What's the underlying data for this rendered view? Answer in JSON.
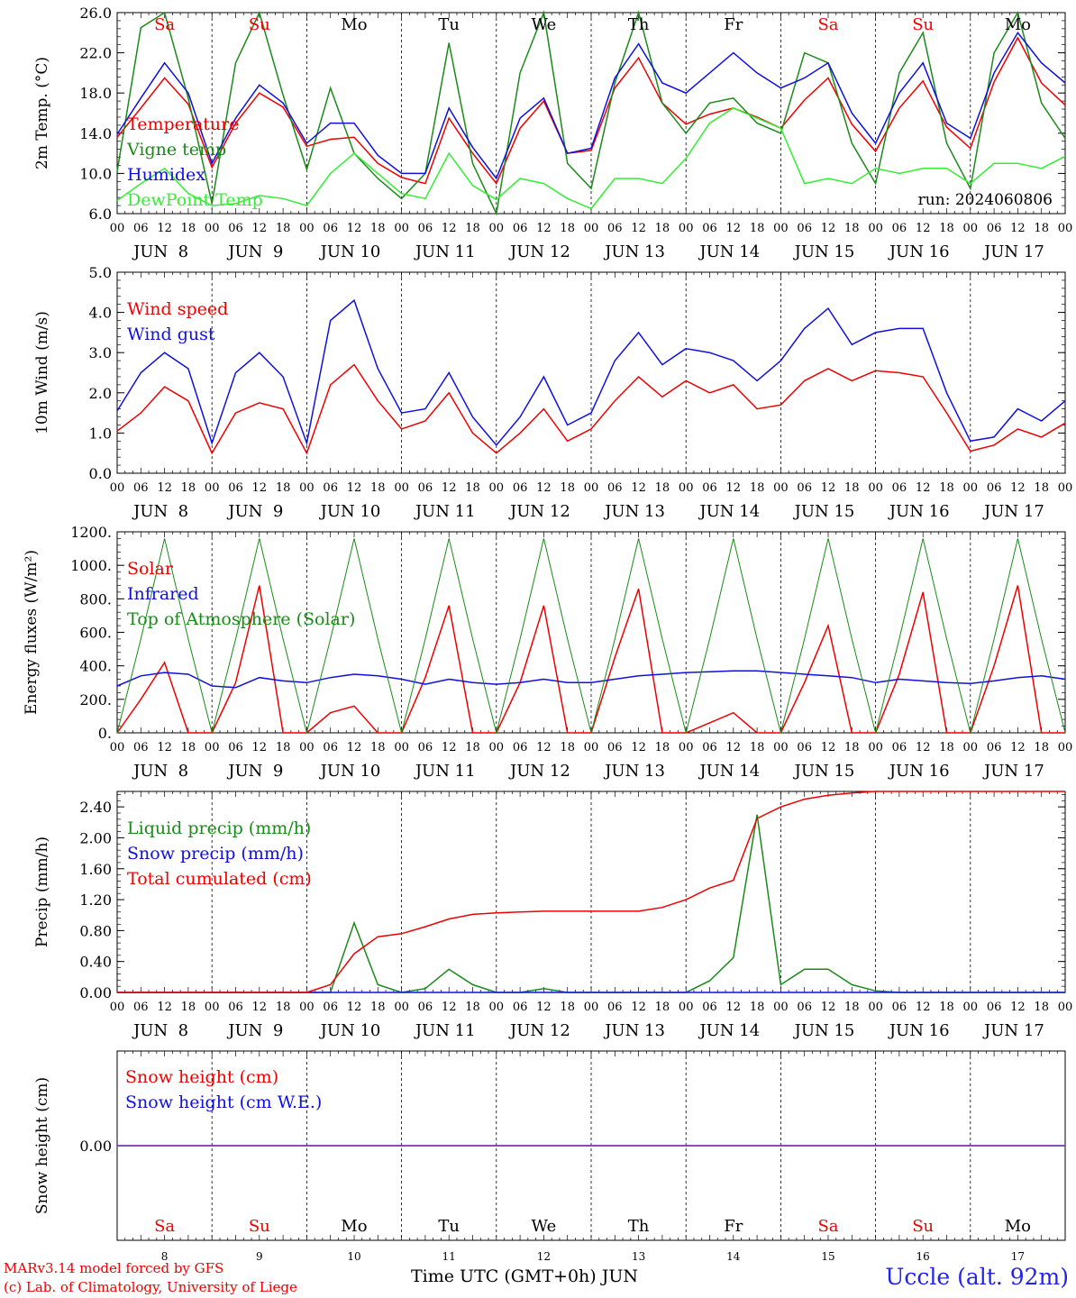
{
  "colors": {
    "red": "#ee0000",
    "green": "#1a8a1a",
    "blue": "#1010dd",
    "lightgreen": "#33ee33",
    "purple": "#7733aa",
    "black": "#000000"
  },
  "days": {
    "weekdays": [
      "Sa",
      "Su",
      "Mo",
      "Tu",
      "We",
      "Th",
      "Fr",
      "Sa",
      "Su",
      "Mo"
    ],
    "weekday_colors": [
      "red",
      "red",
      "black",
      "black",
      "black",
      "black",
      "black",
      "red",
      "red",
      "black"
    ],
    "dates": [
      "JUN  8",
      "JUN  9",
      "JUN 10",
      "JUN 11",
      "JUN 12",
      "JUN 13",
      "JUN 14",
      "JUN 15",
      "JUN 16",
      "JUN 17"
    ],
    "day_numbers": [
      "8",
      "9",
      "10",
      "11",
      "12",
      "13",
      "14",
      "15",
      "16",
      "17"
    ],
    "hour_ticks": [
      "00",
      "06",
      "12",
      "18"
    ],
    "end_tick": "00"
  },
  "chart_data": [
    {
      "type": "line",
      "ylabel": "2m Temp. (°C)",
      "ylim": [
        6.0,
        26.0
      ],
      "yticks": [
        "6.0",
        "10.0",
        "14.0",
        "18.0",
        "22.0",
        "26.0"
      ],
      "annotation": "run: 2024060806",
      "x_hours": [
        0,
        6,
        12,
        18,
        24,
        30,
        36,
        42,
        48,
        54,
        60,
        66,
        72,
        78,
        84,
        90,
        96,
        102,
        108,
        114,
        120,
        126,
        132,
        138,
        144,
        150,
        156,
        162,
        168,
        174,
        180,
        186,
        192,
        198,
        204,
        210,
        216,
        222,
        228,
        234,
        240
      ],
      "series": [
        {
          "name": "Temperature",
          "color": "red",
          "values": [
            13.6,
            16.5,
            19.5,
            16.9,
            10.6,
            15.0,
            18.0,
            16.6,
            12.7,
            13.4,
            13.6,
            11.0,
            9.6,
            9.0,
            15.5,
            12.0,
            9.0,
            14.5,
            17.2,
            12.0,
            12.3,
            18.5,
            21.5,
            17.0,
            14.9,
            15.9,
            16.5,
            15.6,
            14.5,
            17.3,
            19.5,
            14.9,
            12.2,
            16.5,
            19.2,
            14.6,
            12.5,
            19.1,
            23.5,
            19.0,
            16.8
          ]
        },
        {
          "name": "Vigne temp",
          "color": "green",
          "values": [
            10.2,
            24.5,
            26.0,
            17.5,
            7.0,
            21.0,
            26.0,
            17.8,
            10.4,
            18.5,
            12.0,
            9.5,
            7.5,
            10.0,
            23.0,
            11.0,
            6.0,
            20.0,
            26.0,
            11.0,
            8.5,
            19.0,
            26.0,
            17.0,
            14.0,
            17.0,
            17.5,
            15.0,
            14.0,
            22.0,
            21.0,
            13.0,
            9.0,
            20.0,
            24.0,
            13.0,
            8.5,
            22.0,
            26.0,
            17.0,
            13.5
          ]
        },
        {
          "name": "Humidex",
          "color": "blue",
          "values": [
            13.9,
            17.5,
            21.0,
            18.0,
            11.0,
            15.5,
            18.8,
            17.0,
            13.0,
            15.0,
            15.0,
            11.8,
            10.0,
            10.0,
            16.5,
            12.6,
            9.5,
            15.5,
            17.5,
            12.0,
            12.5,
            19.5,
            22.9,
            19.0,
            18.0,
            20.0,
            22.0,
            20.0,
            18.5,
            19.5,
            21.0,
            16.0,
            13.0,
            18.0,
            21.0,
            15.0,
            13.5,
            20.0,
            24.0,
            21.0,
            19.0
          ]
        },
        {
          "name": "DewPoint Temp",
          "color": "lightgreen",
          "values": [
            7.3,
            9.0,
            10.5,
            8.0,
            6.8,
            7.0,
            7.8,
            7.5,
            6.8,
            10.0,
            12.0,
            10.0,
            8.0,
            7.5,
            12.0,
            8.8,
            7.4,
            9.5,
            9.0,
            7.5,
            6.5,
            9.5,
            9.5,
            9.0,
            11.5,
            15.0,
            16.5,
            15.5,
            14.5,
            9.0,
            9.5,
            9.0,
            10.5,
            10.0,
            10.5,
            10.5,
            9.0,
            11.0,
            11.0,
            10.5,
            11.7
          ]
        }
      ]
    },
    {
      "type": "line",
      "ylabel": "10m Wind (m/s)",
      "ylim": [
        0.0,
        5.0
      ],
      "yticks": [
        "0.0",
        "1.0",
        "2.0",
        "3.0",
        "4.0",
        "5.0"
      ],
      "x_hours": [
        0,
        6,
        12,
        18,
        24,
        30,
        36,
        42,
        48,
        54,
        60,
        66,
        72,
        78,
        84,
        90,
        96,
        102,
        108,
        114,
        120,
        126,
        132,
        138,
        144,
        150,
        156,
        162,
        168,
        174,
        180,
        186,
        192,
        198,
        204,
        210,
        216,
        222,
        228,
        234,
        240
      ],
      "series": [
        {
          "name": "Wind speed",
          "color": "red",
          "values": [
            1.05,
            1.5,
            2.15,
            1.8,
            0.5,
            1.5,
            1.75,
            1.6,
            0.5,
            2.2,
            2.7,
            1.8,
            1.1,
            1.3,
            2.0,
            1.0,
            0.5,
            1.0,
            1.6,
            0.8,
            1.1,
            1.8,
            2.4,
            1.9,
            2.3,
            2.0,
            2.2,
            1.6,
            1.7,
            2.3,
            2.6,
            2.3,
            2.55,
            2.5,
            2.4,
            1.5,
            0.55,
            0.7,
            1.1,
            0.9,
            1.25
          ]
        },
        {
          "name": "Wind gust",
          "color": "blue",
          "values": [
            1.55,
            2.5,
            3.0,
            2.6,
            0.75,
            2.5,
            3.0,
            2.4,
            0.75,
            3.8,
            4.3,
            2.6,
            1.5,
            1.6,
            2.5,
            1.4,
            0.7,
            1.4,
            2.4,
            1.2,
            1.5,
            2.8,
            3.5,
            2.7,
            3.1,
            3.0,
            2.8,
            2.3,
            2.8,
            3.6,
            4.1,
            3.2,
            3.5,
            3.6,
            3.6,
            2.0,
            0.8,
            0.9,
            1.6,
            1.3,
            1.8
          ]
        }
      ]
    },
    {
      "type": "line",
      "ylabel": "Energy fluxes (W/m²)",
      "ylim": [
        0,
        1200
      ],
      "yticks": [
        "0.",
        "200.",
        "400.",
        "600.",
        "800.",
        "1000.",
        "1200."
      ],
      "x_hours": [
        0,
        6,
        12,
        18,
        24,
        30,
        36,
        42,
        48,
        54,
        60,
        66,
        72,
        78,
        84,
        90,
        96,
        102,
        108,
        114,
        120,
        126,
        132,
        138,
        144,
        150,
        156,
        162,
        168,
        174,
        180,
        186,
        192,
        198,
        204,
        210,
        216,
        222,
        228,
        234,
        240
      ],
      "series": [
        {
          "name": "Solar",
          "color": "red",
          "values": [
            0,
            200,
            420,
            0,
            0,
            300,
            880,
            0,
            0,
            120,
            160,
            0,
            0,
            330,
            760,
            0,
            0,
            300,
            760,
            0,
            0,
            450,
            860,
            0,
            0,
            60,
            120,
            0,
            0,
            300,
            640,
            0,
            0,
            350,
            840,
            0,
            0,
            400,
            880,
            0,
            0
          ]
        },
        {
          "name": "Infrared",
          "color": "blue",
          "values": [
            280,
            340,
            360,
            350,
            280,
            270,
            330,
            310,
            300,
            330,
            350,
            340,
            320,
            290,
            320,
            300,
            290,
            300,
            320,
            300,
            300,
            320,
            340,
            350,
            360,
            365,
            370,
            370,
            360,
            350,
            340,
            330,
            300,
            320,
            310,
            300,
            295,
            310,
            330,
            340,
            320
          ]
        },
        {
          "name": "Top of Atmosphere (Solar)",
          "color": "green",
          "values": [
            0,
            560,
            1160,
            560,
            0,
            560,
            1160,
            560,
            0,
            560,
            1160,
            560,
            0,
            560,
            1160,
            560,
            0,
            560,
            1160,
            560,
            0,
            560,
            1160,
            560,
            0,
            560,
            1160,
            560,
            0,
            560,
            1160,
            560,
            0,
            560,
            1160,
            560,
            0,
            560,
            1160,
            560,
            0
          ]
        }
      ]
    },
    {
      "type": "line",
      "ylabel": "Precip (mm/h)",
      "ylim": [
        0.0,
        2.6
      ],
      "yticks": [
        "0.00",
        "0.40",
        "0.80",
        "1.20",
        "1.60",
        "2.00",
        "2.40"
      ],
      "x_hours": [
        0,
        6,
        12,
        18,
        24,
        30,
        36,
        42,
        48,
        54,
        60,
        66,
        72,
        78,
        84,
        90,
        96,
        102,
        108,
        114,
        120,
        126,
        132,
        138,
        144,
        150,
        156,
        162,
        168,
        174,
        180,
        186,
        192,
        198,
        204,
        210,
        216,
        222,
        228,
        234,
        240
      ],
      "series": [
        {
          "name": "Liquid precip (mm/h)",
          "color": "green",
          "values": [
            0,
            0,
            0,
            0,
            0,
            0,
            0,
            0,
            0,
            0,
            0.9,
            0.1,
            0,
            0.05,
            0.3,
            0.1,
            0,
            0,
            0.05,
            0,
            0,
            0,
            0,
            0,
            0,
            0.15,
            0.45,
            2.3,
            0.1,
            0.3,
            0.3,
            0.1,
            0.02,
            0,
            0,
            0,
            0,
            0,
            0,
            0,
            0
          ]
        },
        {
          "name": "Snow precip (mm/h)",
          "color": "blue",
          "values": [
            0,
            0,
            0,
            0,
            0,
            0,
            0,
            0,
            0,
            0,
            0,
            0,
            0,
            0,
            0,
            0,
            0,
            0,
            0,
            0,
            0,
            0,
            0,
            0,
            0,
            0,
            0,
            0,
            0,
            0,
            0,
            0,
            0,
            0,
            0,
            0,
            0,
            0,
            0,
            0,
            0
          ]
        },
        {
          "name": "Total cumulated (cm)",
          "color": "red",
          "values": [
            0,
            0,
            0,
            0,
            0,
            0,
            0,
            0,
            0,
            0.1,
            0.5,
            0.72,
            0.76,
            0.85,
            0.95,
            1.01,
            1.03,
            1.04,
            1.05,
            1.05,
            1.05,
            1.05,
            1.05,
            1.1,
            1.2,
            1.35,
            1.45,
            2.25,
            2.4,
            2.5,
            2.55,
            2.58,
            2.6,
            2.6,
            2.6,
            2.6,
            2.6,
            2.6,
            2.6,
            2.6,
            2.6
          ]
        }
      ]
    },
    {
      "type": "line",
      "ylabel": "Snow height (cm)",
      "ylim": [
        -1,
        1
      ],
      "yticks": [
        "0.00"
      ],
      "x_hours": [
        0,
        240
      ],
      "series": [
        {
          "name": "Snow height (cm)",
          "color": "red",
          "values": [
            0,
            0
          ]
        },
        {
          "name": "Snow height (cm W.E.)",
          "color": "blue",
          "values": [
            0,
            0
          ]
        }
      ]
    }
  ],
  "footer": {
    "model_line": "MARv3.14 model forced by GFS",
    "credit_line": "(c) Lab. of Climatology, University of Liege",
    "xlabel": "Time UTC (GMT+0h)",
    "month": "JUN",
    "station": "Uccle (alt. 92m)"
  }
}
